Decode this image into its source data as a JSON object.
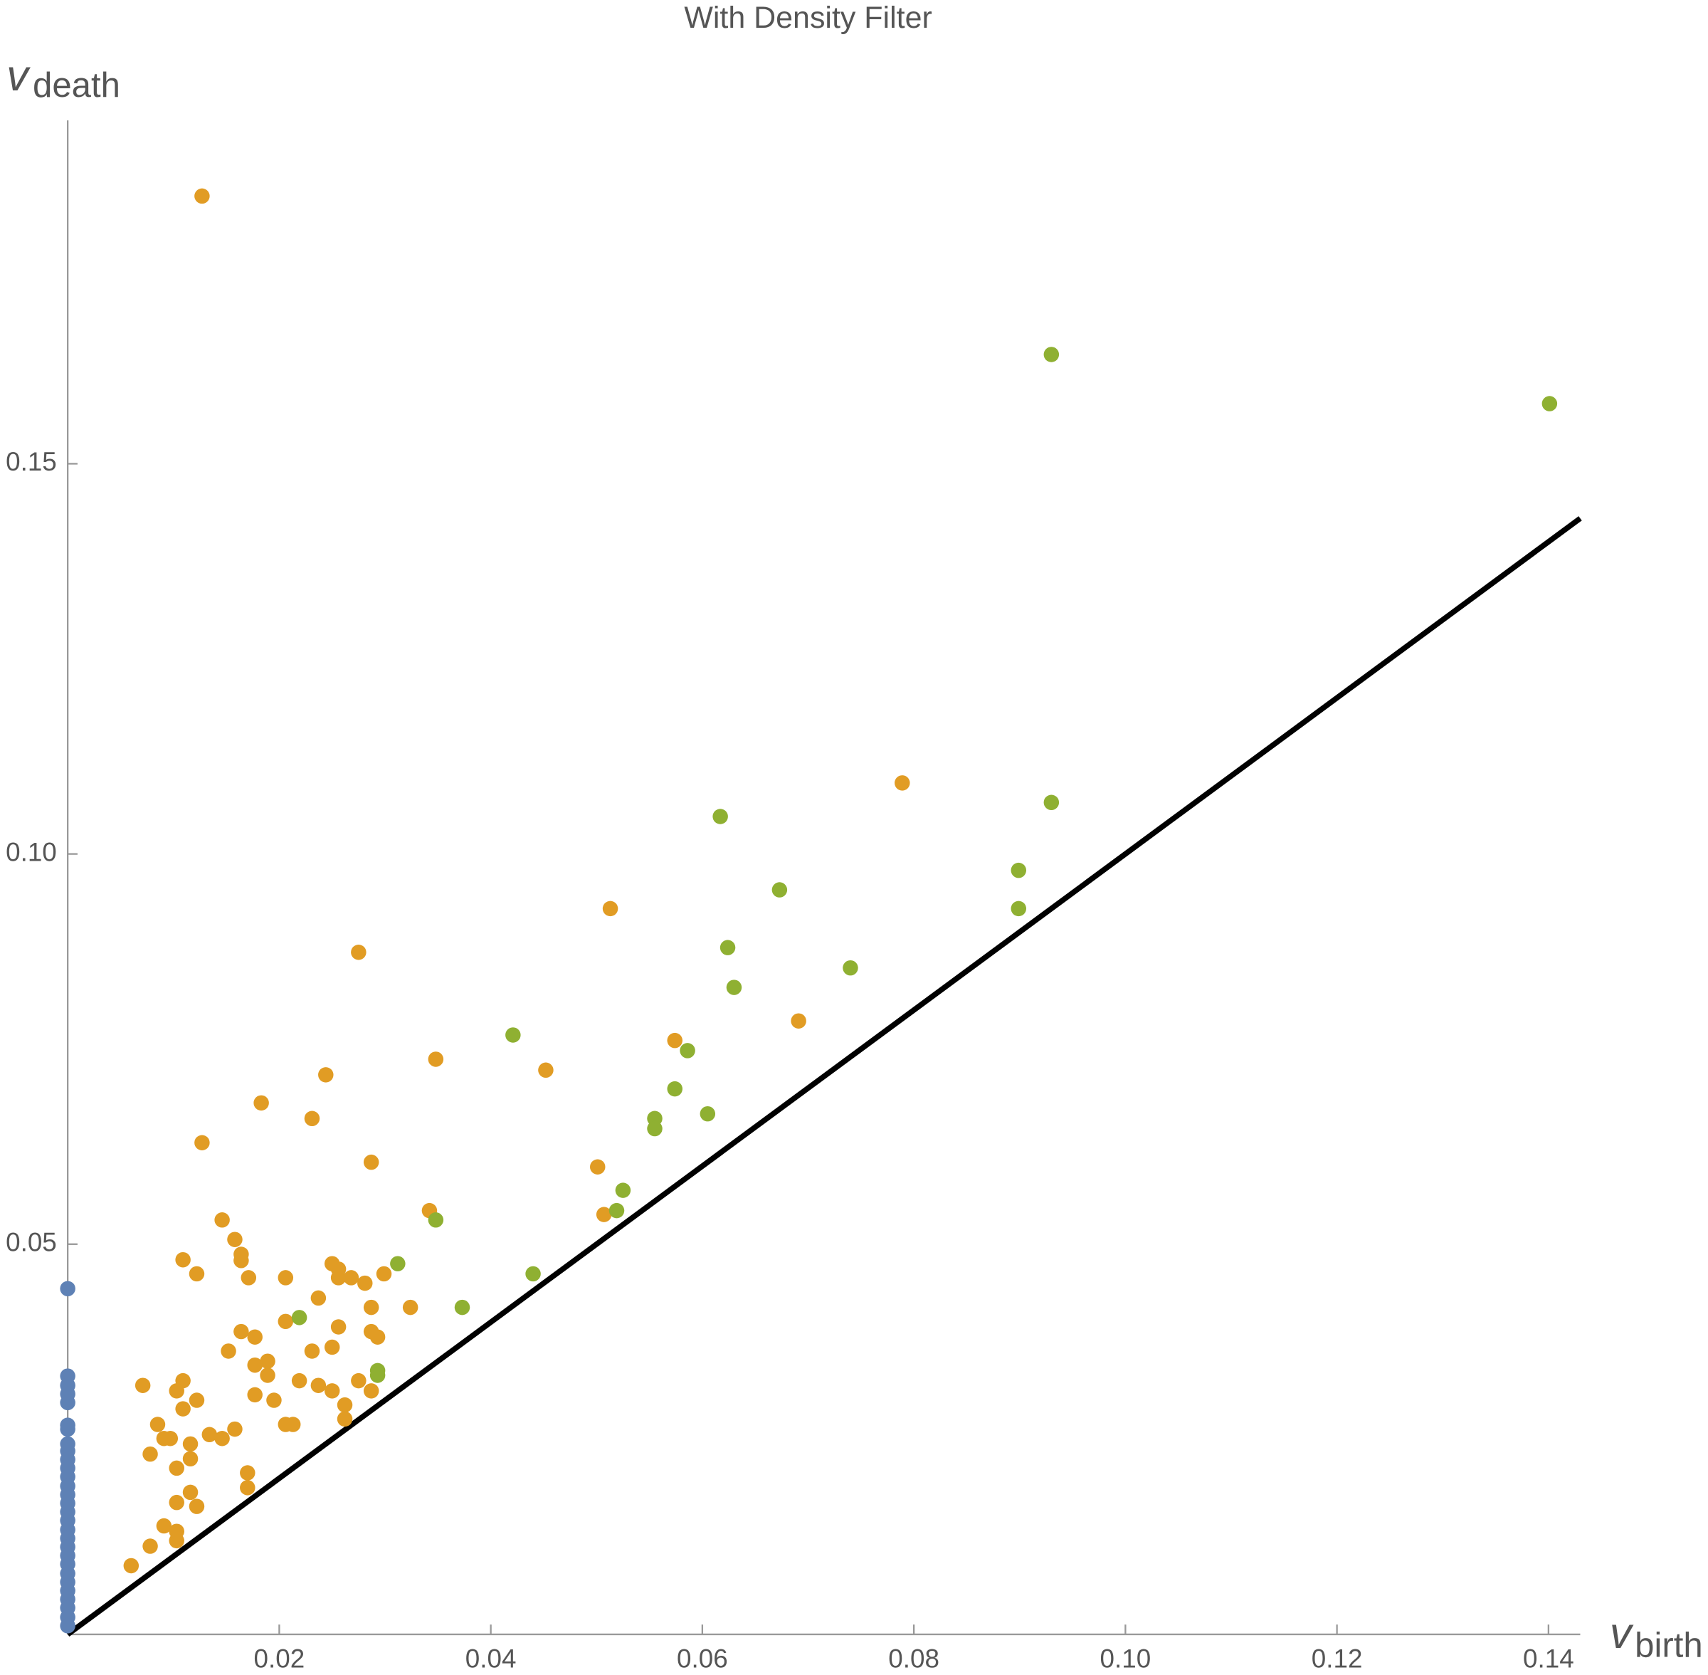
{
  "chart_data": {
    "type": "scatter",
    "title": "With Density Filter",
    "xlabel": {
      "main": "v",
      "sub": "birth"
    },
    "ylabel": {
      "main": "v",
      "sub": "death"
    },
    "xlim": [
      0,
      0.143
    ],
    "ylim": [
      0,
      0.194
    ],
    "xticks": [
      0.02,
      0.04,
      0.06,
      0.08,
      {
        "value": 0.1,
        "label": "0.10"
      },
      0.12,
      0.14
    ],
    "yticks": [
      0.05,
      {
        "value": 0.1,
        "label": "0.10"
      },
      0.15
    ],
    "diagonal": true,
    "series": [
      {
        "color": "#5e81b5",
        "x": [
          0,
          0,
          0,
          0,
          0,
          0,
          0,
          0,
          0,
          0,
          0,
          0,
          0,
          0,
          0,
          0,
          0,
          0,
          0,
          0,
          0,
          0,
          0,
          0,
          0,
          0,
          0,
          0,
          0
        ],
        "values": [
          0.0443,
          0.0331,
          0.0319,
          0.0308,
          0.0297,
          0.0268,
          0.0263,
          0.0244,
          0.0235,
          0.0224,
          0.0213,
          0.0202,
          0.019,
          0.0179,
          0.0168,
          0.0157,
          0.0146,
          0.0134,
          0.0123,
          0.0112,
          0.0101,
          0.009,
          0.0078,
          0.0067,
          0.0056,
          0.0045,
          0.0034,
          0.0022,
          0.0011
        ]
      },
      {
        "color": "#e19c24",
        "x": [
          0.0127,
          0.0789,
          0.0513,
          0.0275,
          0.0691,
          0.0348,
          0.0452,
          0.0244,
          0.0574,
          0.0183,
          0.0231,
          0.0127,
          0.0287,
          0.0501,
          0.0342,
          0.0507,
          0.0146,
          0.0158,
          0.0164,
          0.0164,
          0.0109,
          0.0122,
          0.0171,
          0.0206,
          0.025,
          0.0256,
          0.0256,
          0.0268,
          0.0281,
          0.0299,
          0.0237,
          0.0287,
          0.0324,
          0.0206,
          0.0256,
          0.0164,
          0.0177,
          0.0287,
          0.0293,
          0.0152,
          0.0231,
          0.025,
          0.0189,
          0.0177,
          0.0189,
          0.0071,
          0.0109,
          0.0219,
          0.0237,
          0.025,
          0.0287,
          0.0275,
          0.0103,
          0.0122,
          0.0177,
          0.0195,
          0.0262,
          0.0109,
          0.0085,
          0.0206,
          0.0213,
          0.0262,
          0.0091,
          0.0097,
          0.0134,
          0.0146,
          0.0158,
          0.0116,
          0.0078,
          0.0116,
          0.0103,
          0.017,
          0.0116,
          0.017,
          0.0103,
          0.0122,
          0.0091,
          0.0103,
          0.0103,
          0.0078,
          0.006
        ],
        "values": [
          0.1843,
          0.1091,
          0.093,
          0.0874,
          0.0786,
          0.0737,
          0.0723,
          0.0717,
          0.0761,
          0.0681,
          0.0661,
          0.063,
          0.0605,
          0.0599,
          0.0543,
          0.0538,
          0.0531,
          0.0506,
          0.0487,
          0.0479,
          0.048,
          0.0462,
          0.0457,
          0.0457,
          0.0475,
          0.0468,
          0.0457,
          0.0457,
          0.045,
          0.0462,
          0.0431,
          0.0419,
          0.0419,
          0.0401,
          0.0394,
          0.0388,
          0.0381,
          0.0388,
          0.0381,
          0.0363,
          0.0363,
          0.0368,
          0.035,
          0.0345,
          0.0332,
          0.0319,
          0.0325,
          0.0325,
          0.0319,
          0.0312,
          0.0312,
          0.0325,
          0.0312,
          0.03,
          0.0307,
          0.03,
          0.0294,
          0.0289,
          0.0269,
          0.0269,
          0.0269,
          0.0276,
          0.0251,
          0.0251,
          0.0256,
          0.0251,
          0.0263,
          0.0244,
          0.0231,
          0.0225,
          0.0213,
          0.0207,
          0.0182,
          0.0188,
          0.0169,
          0.0164,
          0.0139,
          0.0132,
          0.012,
          0.0113,
          0.0088
        ]
      },
      {
        "color": "#8fb032",
        "x": [
          0.093,
          0.1401,
          0.0617,
          0.093,
          0.0899,
          0.0673,
          0.0899,
          0.0624,
          0.074,
          0.063,
          0.0421,
          0.0586,
          0.0574,
          0.0605,
          0.0555,
          0.0555,
          0.0525,
          0.0519,
          0.0348,
          0.0312,
          0.044,
          0.0373,
          0.0219,
          0.0293,
          0.0293
        ],
        "values": [
          0.164,
          0.1577,
          0.1048,
          0.1066,
          0.0979,
          0.0954,
          0.093,
          0.088,
          0.0854,
          0.0829,
          0.0768,
          0.0748,
          0.0699,
          0.0667,
          0.0661,
          0.0648,
          0.0569,
          0.0543,
          0.0531,
          0.0475,
          0.0462,
          0.0419,
          0.0406,
          0.0338,
          0.0332
        ]
      }
    ]
  }
}
